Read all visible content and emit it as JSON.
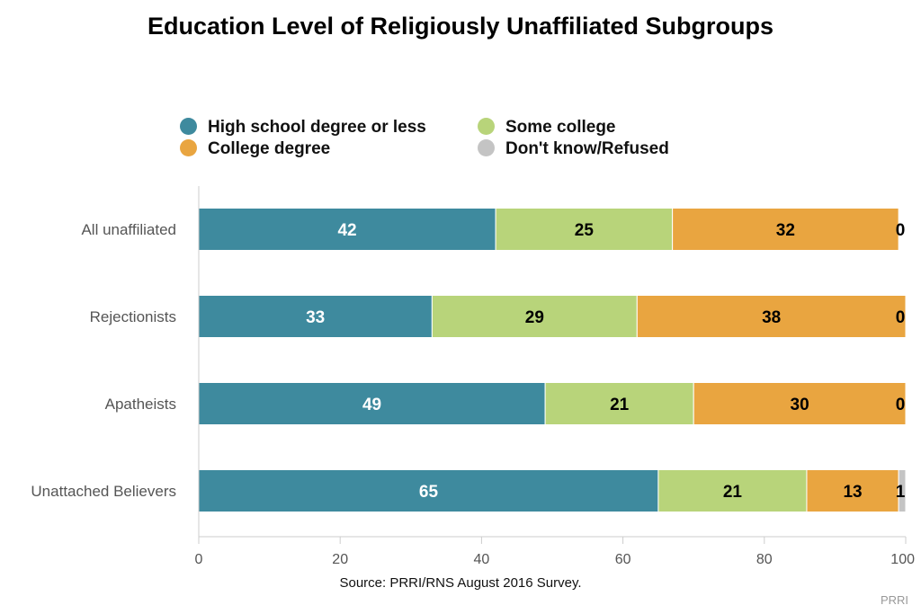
{
  "title": "Education Level of Religiously Unaffiliated Subgroups",
  "source": "Source: PRRI/RNS August 2016 Survey.",
  "credit": "PRRI",
  "legend": [
    {
      "label": "High school degree or less",
      "color": "#3e8a9e"
    },
    {
      "label": "Some college",
      "color": "#b8d47a"
    },
    {
      "label": "College degree",
      "color": "#e9a540"
    },
    {
      "label": "Don't know/Refused",
      "color": "#c4c4c4"
    }
  ],
  "chart_data": {
    "type": "bar",
    "orientation": "horizontal",
    "stacked": true,
    "title": "Education Level of Religiously Unaffiliated Subgroups",
    "categories": [
      "All unaffiliated",
      "Rejectionists",
      "Apatheists",
      "Unattached Believers"
    ],
    "series": [
      {
        "name": "High school degree or less",
        "color": "#3e8a9e",
        "label_color": "#ffffff",
        "values": [
          42,
          33,
          49,
          65
        ]
      },
      {
        "name": "Some college",
        "color": "#b8d47a",
        "label_color": "#000000",
        "values": [
          25,
          29,
          21,
          21
        ]
      },
      {
        "name": "College degree",
        "color": "#e9a540",
        "label_color": "#000000",
        "values": [
          32,
          38,
          30,
          13
        ]
      },
      {
        "name": "Don't know/Refused",
        "color": "#c4c4c4",
        "label_color": "#000000",
        "values": [
          0,
          0,
          0,
          1
        ]
      }
    ],
    "xlim": [
      0,
      100
    ],
    "xticks": [
      0,
      20,
      40,
      60,
      80,
      100
    ],
    "grid": false,
    "legend_position": "top"
  }
}
